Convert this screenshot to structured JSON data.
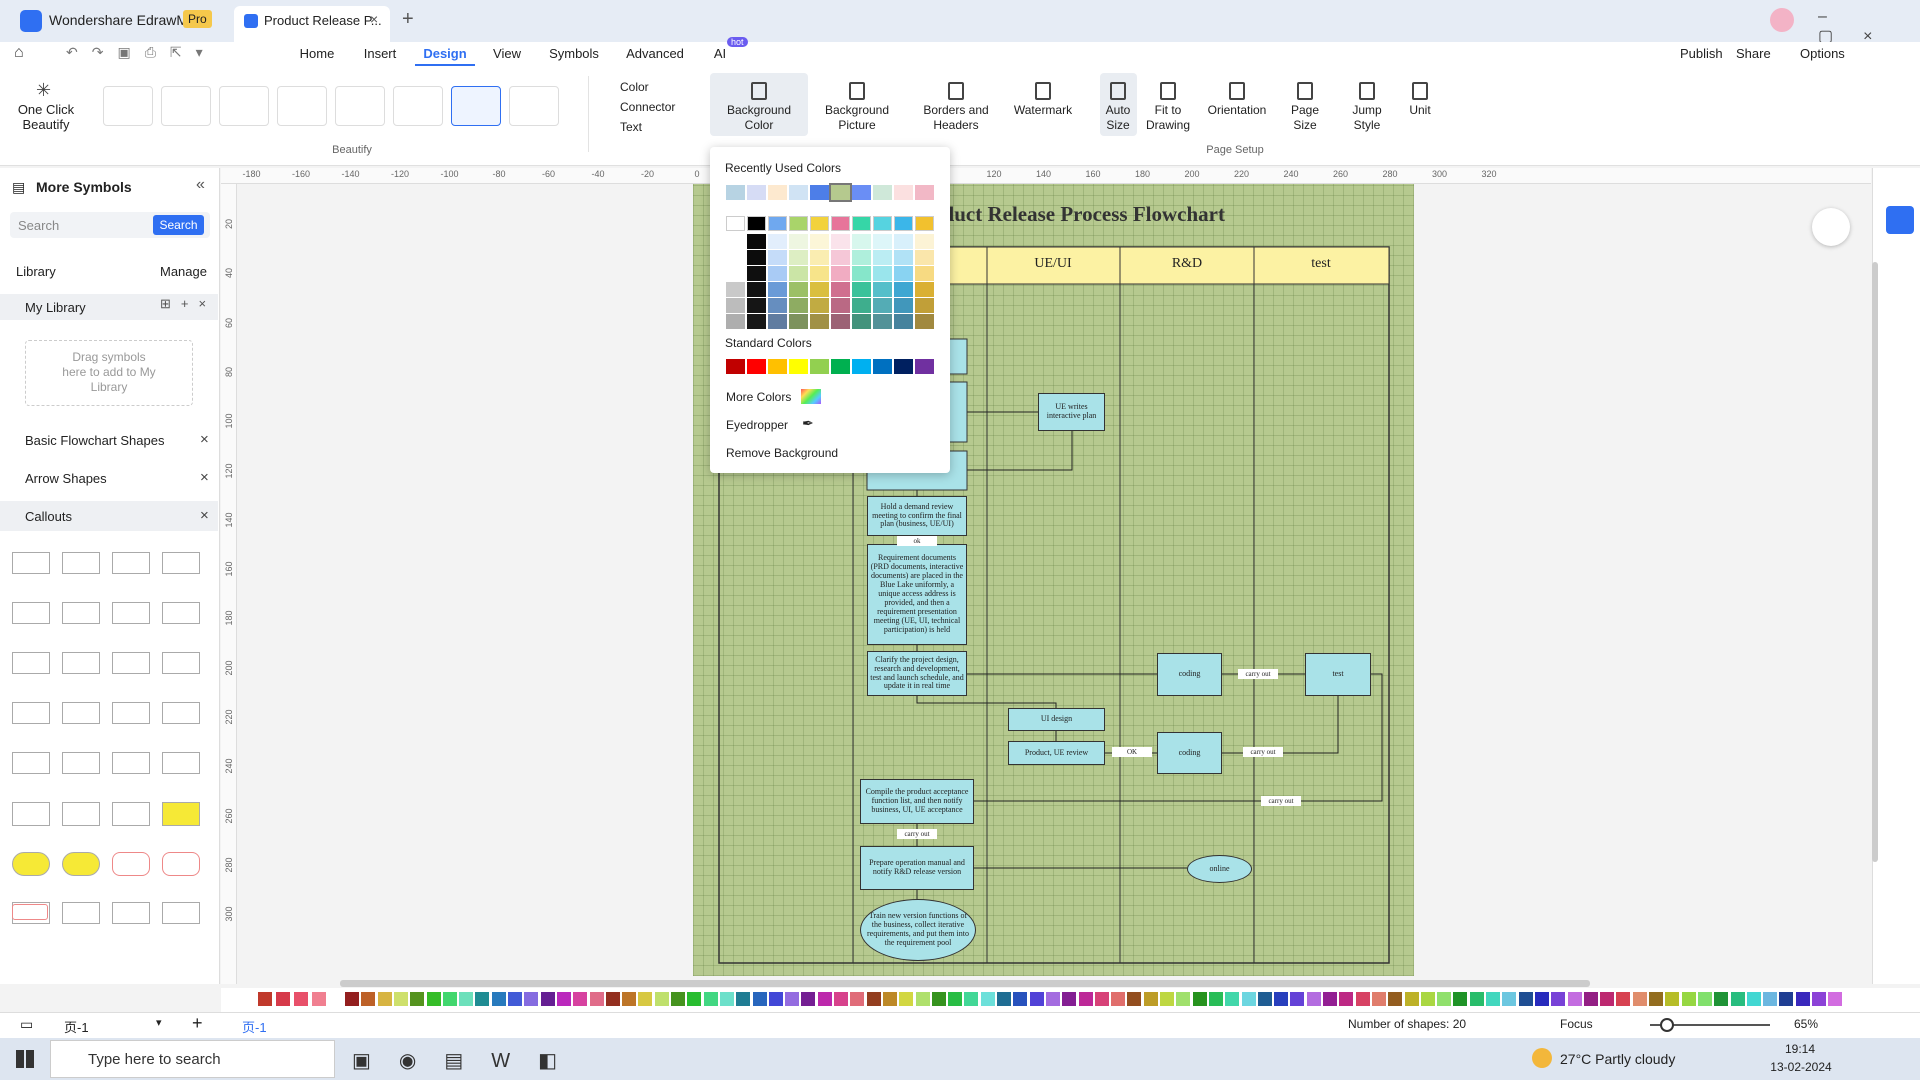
{
  "title_bar": {
    "app_name": "Wondershare EdrawMax",
    "badge": "Pro",
    "tab": "Product Release P..."
  },
  "menu": {
    "tabs": [
      "Home",
      "Insert",
      "Design",
      "View",
      "Symbols",
      "Advanced",
      "AI"
    ],
    "ai_badge": "hot",
    "actions": [
      "Publish",
      "Share",
      "Options"
    ]
  },
  "ribbon": {
    "one_click": "One Click Beautify",
    "beautify_group": "Beautify",
    "format": [
      "Color",
      "Connector",
      "Text"
    ],
    "buttons": [
      "Background Color",
      "Background Picture",
      "Borders and Headers",
      "Watermark",
      "Auto Size",
      "Fit to Drawing",
      "Orientation",
      "Page Size",
      "Jump Style",
      "Unit"
    ],
    "page_setup_group": "Page Setup"
  },
  "left_panel": {
    "title": "More Symbols",
    "search_placeholder": "Search",
    "search_button": "Search",
    "library": "Library",
    "manage": "Manage",
    "my_library": "My Library",
    "drop_hint": "Drag symbols here to add to My Library",
    "libraries": [
      "Basic Flowchart Shapes",
      "Arrow Shapes",
      "Callouts"
    ]
  },
  "color_dropdown": {
    "recent": "Recently Used Colors",
    "standard": "Standard Colors",
    "more": "More Colors",
    "eyedropper": "Eyedropper",
    "remove": "Remove Background"
  },
  "rulers": {
    "horizontal": [
      -180,
      -160,
      -140,
      -120,
      -100,
      -80,
      -60,
      -40,
      -20,
      0,
      120,
      140,
      160,
      180,
      200,
      220,
      240,
      260,
      280,
      300,
      320
    ],
    "vertical": [
      20,
      40,
      60,
      80,
      100,
      120,
      140,
      160,
      180,
      200,
      220,
      240,
      260,
      280,
      300
    ]
  },
  "document": {
    "title": "Product Release Process Flowchart",
    "lanes": [
      "UE/UI",
      "R&D",
      "test"
    ],
    "nodes": [
      "UE writes interactive plan",
      "Hold a demand review meeting to confirm the final plan (business, UE/UI)",
      "Requirement documents (PRD documents, interactive documents) are placed in the Blue Lake uniformly, a unique access address is provided, and then a requirement presentation meeting (UE, UI, technical participation) is held",
      "Clarify the project design, research and development, test and launch schedule, and update it in real time",
      "coding",
      "test",
      "UI design",
      "Product, UE review",
      "coding",
      "Compile the product acceptance function list, and then notify business, UI, UE acceptance",
      "Prepare operation manual and notify R&D release version",
      "online",
      "Train new version functions of the business, collect iterative requirements, and put them into the requirement pool"
    ],
    "edge_labels": [
      "carry out",
      "carry out",
      "carry out",
      "carry out",
      "OK",
      "ok"
    ]
  },
  "status_bar": {
    "page_menu": "页-1",
    "page_tab": "页-1",
    "shape_count": "Number of shapes: 20",
    "focus": "Focus",
    "zoom": "65%"
  },
  "taskbar": {
    "search": "Type here to search",
    "weather": "27°C Partly cloudy",
    "time": "19:14",
    "date": "13-02-2024"
  }
}
